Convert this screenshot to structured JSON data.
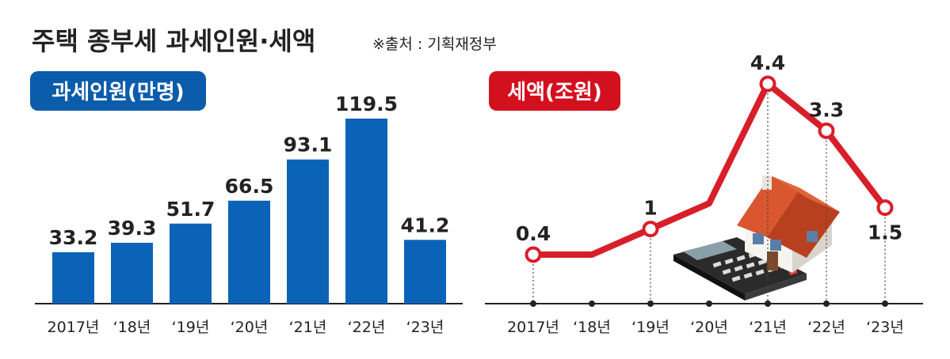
{
  "header": {
    "title": "주택 종부세 과세인원·세액",
    "source": "※출처 : 기획재정부"
  },
  "colors": {
    "bar": "#0b63b7",
    "line": "#d91e2b",
    "badge_blue": "#0b5cab",
    "badge_red": "#d3111e",
    "text": "#222222",
    "axis": "#222222"
  },
  "chart_data": [
    {
      "type": "bar",
      "title": "과세인원(만명)",
      "categories": [
        "2017년",
        "‘18년",
        "‘19년",
        "‘20년",
        "‘21년",
        "‘22년",
        "‘23년"
      ],
      "values": [
        33.2,
        39.3,
        51.7,
        66.5,
        93.1,
        119.5,
        41.2
      ],
      "ylim": [
        0,
        125
      ],
      "grid": false,
      "legend": "none"
    },
    {
      "type": "line",
      "title": "세액(조원)",
      "categories": [
        "2017년",
        "‘18년",
        "‘19년",
        "‘20년",
        "‘21년",
        "‘22년",
        "‘23년"
      ],
      "values": [
        0.4,
        0.4,
        1.0,
        1.6,
        4.4,
        3.3,
        1.5
      ],
      "labels": [
        "0.4",
        "",
        "1",
        "",
        "4.4",
        "3.3",
        "1.5"
      ],
      "ylim": [
        0,
        4.6
      ],
      "grid": false,
      "legend": "none",
      "illustration": "house-and-calculator-icon"
    }
  ]
}
